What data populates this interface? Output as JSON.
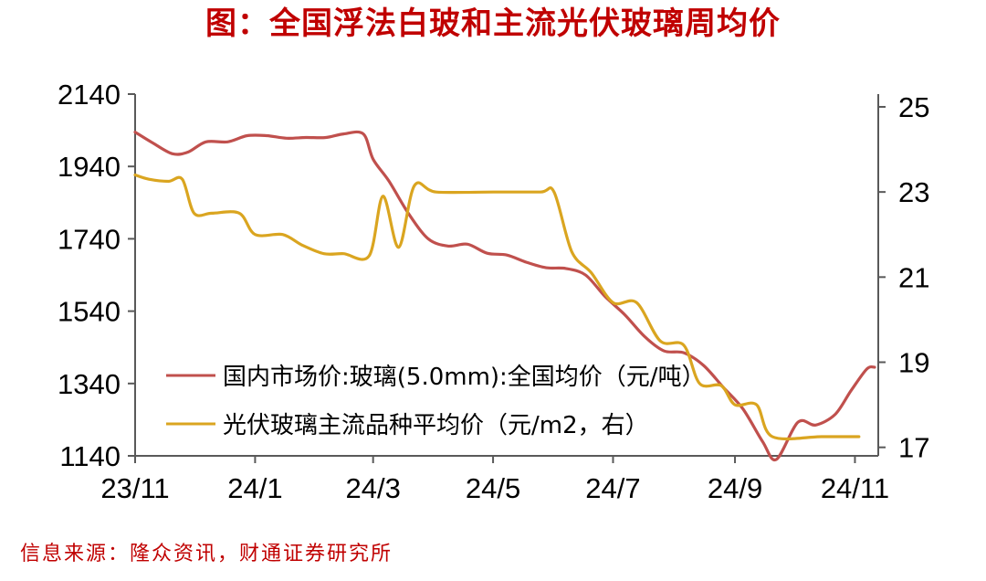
{
  "header": {
    "title": "图：全国浮法白玻和主流光伏玻璃周均价"
  },
  "footer": {
    "source": "信息来源：隆众资讯，财通证券研究所"
  },
  "colors": {
    "title": "#c00000",
    "series_float": "#c0504d",
    "series_pv": "#daa520",
    "axis": "#595959"
  },
  "chart_data": {
    "type": "line",
    "title": "图：全国浮法白玻和主流光伏玻璃周均价",
    "x_ticks": [
      "23/11",
      "24/1",
      "24/3",
      "24/5",
      "24/7",
      "24/9",
      "24/11"
    ],
    "x_tick_dates": [
      "2023-11-01",
      "2024-01-01",
      "2024-03-01",
      "2024-05-01",
      "2024-07-01",
      "2024-09-01",
      "2024-11-01"
    ],
    "x_range": [
      "2023-11-01",
      "2024-11-11"
    ],
    "y_left": {
      "ticks": [
        2140,
        1940,
        1740,
        1540,
        1340,
        1140
      ],
      "range": [
        1140,
        2140
      ]
    },
    "y_right": {
      "ticks": [
        25,
        23,
        21,
        19,
        17
      ],
      "range": [
        16.8,
        25.3
      ]
    },
    "legend_position": "inside bottom",
    "grid": false,
    "series": [
      {
        "name": "国内市场价:玻璃(5.0mm):全国均价（元/吨）",
        "axis": "left",
        "color": "#c0504d",
        "points": [
          [
            "2023-11-01",
            2035
          ],
          [
            "2023-11-10",
            2005
          ],
          [
            "2023-11-20",
            1975
          ],
          [
            "2023-11-28",
            1980
          ],
          [
            "2023-12-07",
            2008
          ],
          [
            "2023-12-18",
            2008
          ],
          [
            "2023-12-28",
            2025
          ],
          [
            "2024-01-07",
            2025
          ],
          [
            "2024-01-17",
            2018
          ],
          [
            "2024-01-27",
            2020
          ],
          [
            "2024-02-06",
            2020
          ],
          [
            "2024-02-15",
            2030
          ],
          [
            "2024-02-25",
            2030
          ],
          [
            "2024-03-01",
            1960
          ],
          [
            "2024-03-09",
            1900
          ],
          [
            "2024-03-19",
            1810
          ],
          [
            "2024-03-29",
            1740
          ],
          [
            "2024-04-08",
            1720
          ],
          [
            "2024-04-18",
            1725
          ],
          [
            "2024-04-28",
            1700
          ],
          [
            "2024-05-08",
            1695
          ],
          [
            "2024-05-18",
            1675
          ],
          [
            "2024-05-28",
            1660
          ],
          [
            "2024-06-07",
            1658
          ],
          [
            "2024-06-17",
            1640
          ],
          [
            "2024-06-27",
            1580
          ],
          [
            "2024-07-07",
            1530
          ],
          [
            "2024-07-17",
            1470
          ],
          [
            "2024-07-27",
            1430
          ],
          [
            "2024-08-06",
            1425
          ],
          [
            "2024-08-16",
            1390
          ],
          [
            "2024-08-26",
            1330
          ],
          [
            "2024-09-05",
            1270
          ],
          [
            "2024-09-15",
            1180
          ],
          [
            "2024-09-22",
            1130
          ],
          [
            "2024-10-03",
            1233
          ],
          [
            "2024-10-12",
            1225
          ],
          [
            "2024-10-22",
            1255
          ],
          [
            "2024-10-30",
            1320
          ],
          [
            "2024-11-07",
            1380
          ],
          [
            "2024-11-11",
            1385
          ]
        ]
      },
      {
        "name": "光伏玻璃主流品种平均价（元/m2，右）",
        "axis": "right",
        "color": "#daa520",
        "points": [
          [
            "2023-11-01",
            23.4
          ],
          [
            "2023-11-08",
            23.3
          ],
          [
            "2023-11-18",
            23.25
          ],
          [
            "2023-11-25",
            23.3
          ],
          [
            "2023-12-01",
            22.5
          ],
          [
            "2023-12-10",
            22.5
          ],
          [
            "2023-12-24",
            22.5
          ],
          [
            "2024-01-01",
            22.0
          ],
          [
            "2024-01-15",
            22.0
          ],
          [
            "2024-01-25",
            21.75
          ],
          [
            "2024-02-05",
            21.55
          ],
          [
            "2024-02-15",
            21.55
          ],
          [
            "2024-02-28",
            21.5
          ],
          [
            "2024-03-06",
            22.9
          ],
          [
            "2024-03-14",
            21.7
          ],
          [
            "2024-03-22",
            23.15
          ],
          [
            "2024-04-02",
            23.0
          ],
          [
            "2024-05-01",
            23.0
          ],
          [
            "2024-05-25",
            23.0
          ],
          [
            "2024-06-01",
            23.0
          ],
          [
            "2024-06-10",
            21.6
          ],
          [
            "2024-06-20",
            21.1
          ],
          [
            "2024-07-01",
            20.4
          ],
          [
            "2024-07-13",
            20.4
          ],
          [
            "2024-07-25",
            19.5
          ],
          [
            "2024-08-06",
            19.4
          ],
          [
            "2024-08-14",
            18.5
          ],
          [
            "2024-08-25",
            18.45
          ],
          [
            "2024-09-01",
            18.0
          ],
          [
            "2024-09-12",
            18.0
          ],
          [
            "2024-09-20",
            17.25
          ],
          [
            "2024-10-15",
            17.25
          ],
          [
            "2024-11-03",
            17.25
          ]
        ]
      }
    ]
  }
}
